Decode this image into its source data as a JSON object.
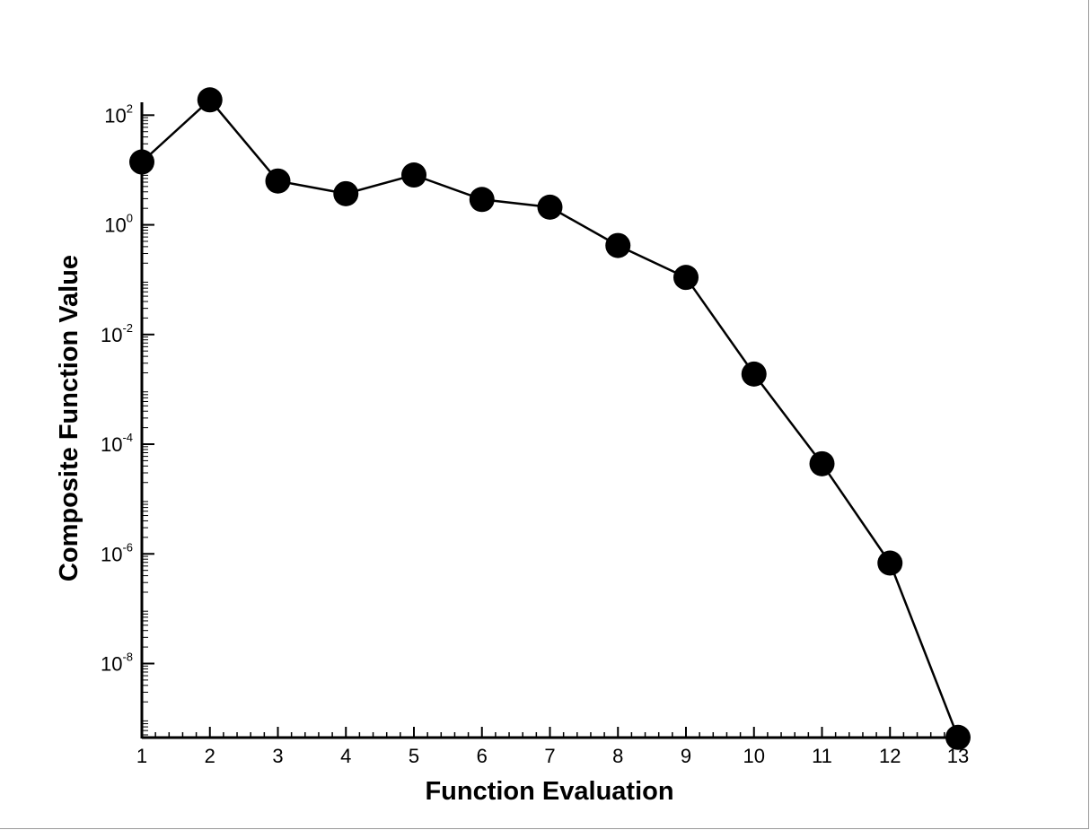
{
  "chart_data": {
    "type": "line",
    "xlabel": "Function Evaluation",
    "ylabel": "Composite Function Value",
    "xlim": [
      1,
      13
    ],
    "y_scale": "log",
    "ylim_log10": [
      -9.35,
      2.3
    ],
    "x_ticks": [
      1,
      2,
      3,
      4,
      5,
      6,
      7,
      8,
      9,
      10,
      11,
      12,
      13
    ],
    "y_ticks": [
      {
        "base": "10",
        "exp": "2",
        "log10": 2
      },
      {
        "base": "10",
        "exp": "0",
        "log10": 0
      },
      {
        "base": "10",
        "exp": "-2",
        "log10": -2
      },
      {
        "base": "10",
        "exp": "-4",
        "log10": -4
      },
      {
        "base": "10",
        "exp": "-6",
        "log10": -6
      },
      {
        "base": "10",
        "exp": "-8",
        "log10": -8
      }
    ],
    "x": [
      1,
      2,
      3,
      4,
      5,
      6,
      7,
      8,
      9,
      10,
      11,
      12,
      13
    ],
    "y": [
      14,
      190,
      6.3,
      3.7,
      8.1,
      2.9,
      2.1,
      0.42,
      0.11,
      0.0019,
      4.4e-05,
      6.8e-07,
      4.5e-10
    ],
    "marker": "filled-circle",
    "line_color": "#000000",
    "marker_color": "#000000",
    "grid": false
  }
}
